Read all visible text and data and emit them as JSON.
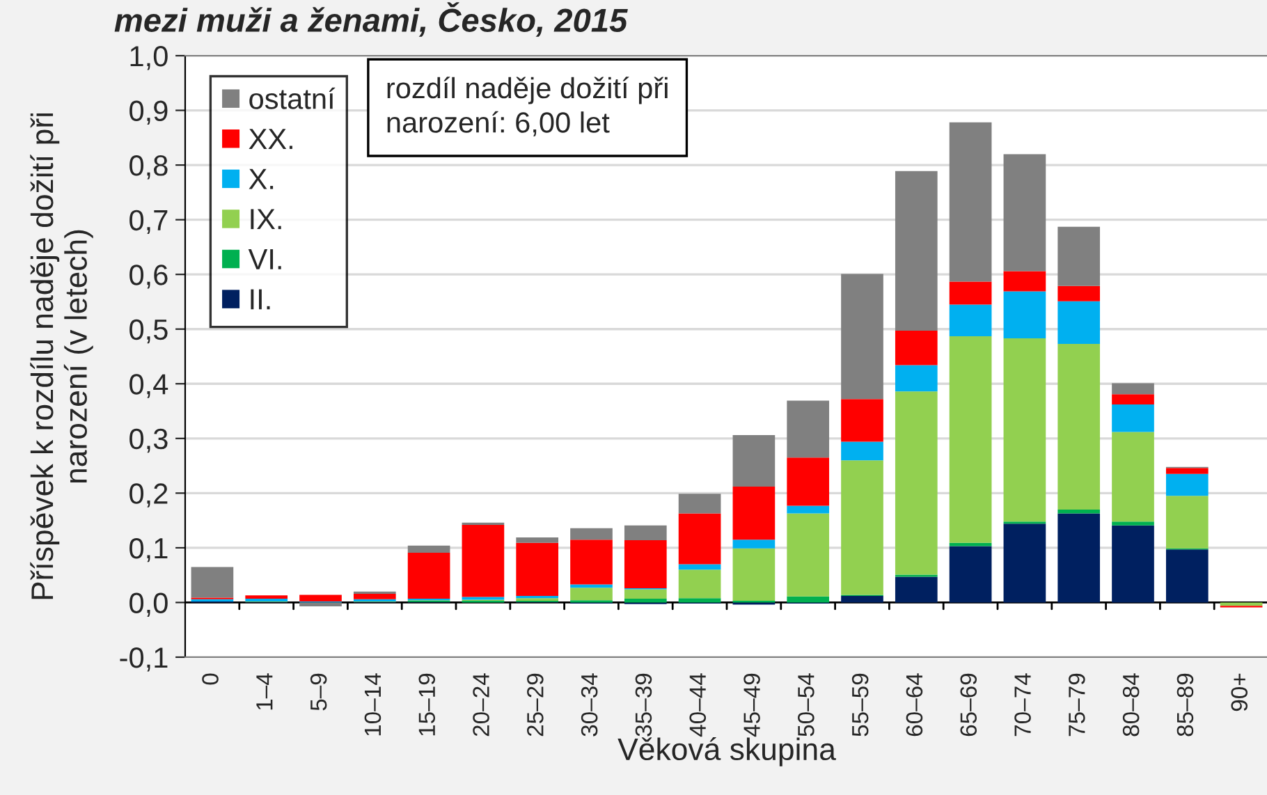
{
  "chart_data": {
    "type": "bar",
    "stacked": true,
    "title": "mezi muži a ženami, Česko, 2015",
    "xlabel": "Věková skupina",
    "ylabel": "Příspěvek k rozdílu naděje dožití při\nnarození (v letech)",
    "categories": [
      "0",
      "1–4",
      "5–9",
      "10–14",
      "15–19",
      "20–24",
      "25–29",
      "30–34",
      "35–39",
      "40–44",
      "45–49",
      "50–54",
      "55–59",
      "60–64",
      "65–69",
      "70–74",
      "75–79",
      "80–84",
      "85–89",
      "90+"
    ],
    "series": [
      {
        "name": "II.",
        "color": "#002060",
        "values": [
          0.002,
          0.001,
          0,
          0.001,
          0.001,
          null,
          0.001,
          -0.002,
          -0.003,
          -0.002,
          -0.004,
          -0.002,
          0.012,
          0.047,
          0.103,
          0.144,
          0.163,
          0.141,
          0.097,
          0
        ]
      },
      {
        "name": "VI.",
        "color": "#00b050",
        "values": [
          0,
          0,
          0,
          0,
          0.002,
          0.003,
          0.002,
          0.004,
          0.007,
          0.008,
          0.003,
          0.011,
          0.002,
          0.004,
          0.006,
          0.004,
          0.007,
          0.007,
          0.002,
          0
        ]
      },
      {
        "name": "IX.",
        "color": "#92d050",
        "values": [
          0,
          0.001,
          0,
          0.001,
          0.001,
          0.002,
          0.005,
          0.023,
          0.017,
          0.052,
          0.096,
          0.152,
          0.246,
          0.335,
          0.378,
          0.335,
          0.303,
          0.164,
          0.096,
          -0.006
        ]
      },
      {
        "name": "X.",
        "color": "#00b0f0",
        "values": [
          0.004,
          0.005,
          0.002,
          0.004,
          0.003,
          0.005,
          0.004,
          0.006,
          0.002,
          0.01,
          0.016,
          0.014,
          0.034,
          0.048,
          0.058,
          0.086,
          0.078,
          0.05,
          0.04,
          0
        ]
      },
      {
        "name": "XX.",
        "color": "#ff0000",
        "values": [
          0.003,
          0.006,
          0.012,
          0.01,
          0.084,
          0.132,
          0.097,
          0.082,
          0.088,
          0.093,
          0.097,
          0.088,
          0.078,
          0.063,
          0.042,
          0.037,
          0.028,
          0.019,
          0.011,
          -0.003
        ]
      },
      {
        "name": "ostatní",
        "color": "#808080",
        "values": [
          0.056,
          0,
          -0.007,
          0.004,
          0.013,
          0.004,
          0.01,
          0.021,
          0.027,
          0.036,
          0.094,
          0.104,
          0.229,
          0.292,
          0.291,
          0.214,
          0.108,
          0.02,
          0.002,
          0
        ]
      }
    ],
    "ylim": [
      -0.1,
      1.0
    ],
    "yticks": [
      {
        "value": -0.1,
        "label": "-0,1"
      },
      {
        "value": 0,
        "label": "0,0"
      },
      {
        "value": 0.1,
        "label": "0,1"
      },
      {
        "value": 0.2,
        "label": "0,2"
      },
      {
        "value": 0.3,
        "label": "0,3"
      },
      {
        "value": 0.4,
        "label": "0,4"
      },
      {
        "value": 0.5,
        "label": "0,5"
      },
      {
        "value": 0.6,
        "label": "0,6"
      },
      {
        "value": 0.7,
        "label": "0,7"
      },
      {
        "value": 0.8,
        "label": "0,8"
      },
      {
        "value": 0.9,
        "label": "0,9"
      },
      {
        "value": 1.0,
        "label": "1,0"
      }
    ],
    "grid": "y",
    "legend": "top left",
    "annotations": [
      "rozdíl naděje dožití při\nnarození: 6,00 let"
    ]
  }
}
